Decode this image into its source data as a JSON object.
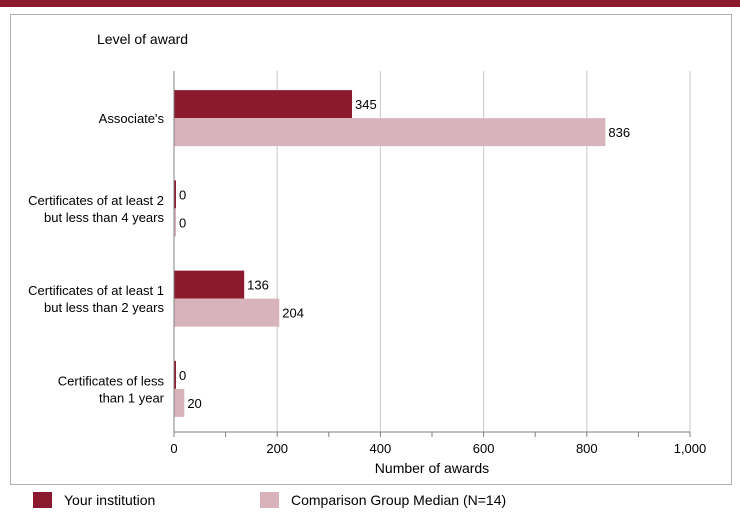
{
  "colors": {
    "institution": "#8b1a2e",
    "median": "#d9b3bb",
    "grid": "#c8c8c8",
    "axis": "#808080"
  },
  "chart_data": {
    "type": "bar",
    "orientation": "horizontal",
    "title": "Level of award",
    "xlabel": "Number of awards",
    "xlim": [
      0,
      1000
    ],
    "xticks": [
      0,
      200,
      400,
      600,
      800,
      1000
    ],
    "xtick_labels": [
      "0",
      "200",
      "400",
      "600",
      "800",
      "1,000"
    ],
    "grid": true,
    "legend_position": "bottom",
    "categories": [
      [
        "Associate's"
      ],
      [
        "Certificates of at least 2",
        "but less than 4 years"
      ],
      [
        "Certificates of at least 1",
        "but  less than 2 years"
      ],
      [
        "Certificates of less",
        "than 1 year"
      ]
    ],
    "series": [
      {
        "name": "Your institution",
        "color": "#8b1a2e",
        "values": [
          345,
          0,
          136,
          0
        ],
        "labels": [
          "345",
          "0",
          "136",
          "0"
        ]
      },
      {
        "name": "Comparison Group Median (N=14)",
        "color": "#d9b3bb",
        "values": [
          836,
          0,
          204,
          20
        ],
        "labels": [
          "836",
          "0",
          "204",
          "20"
        ]
      }
    ]
  }
}
